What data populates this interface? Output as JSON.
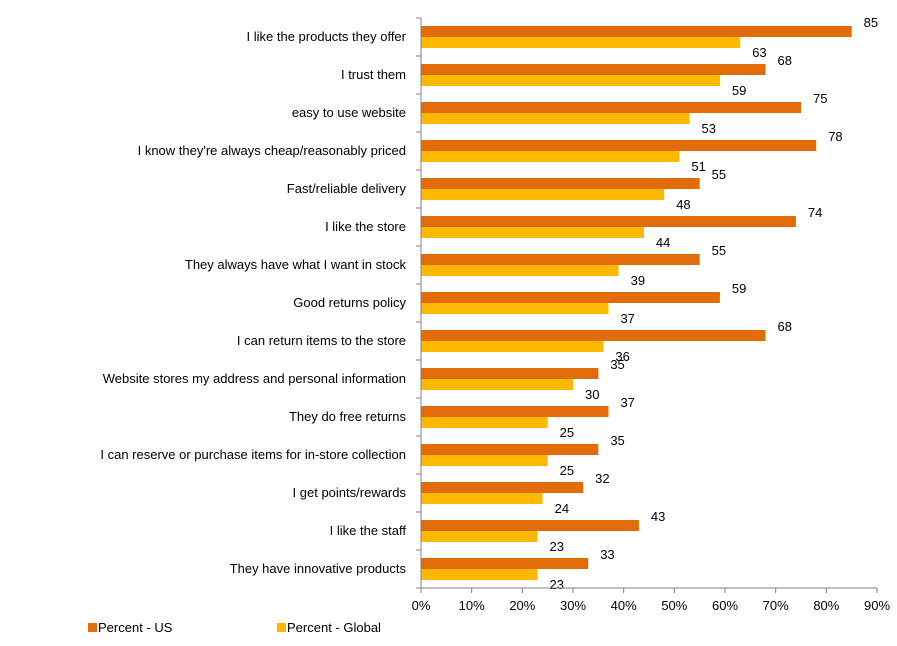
{
  "chart_data": {
    "type": "bar",
    "orientation": "horizontal",
    "categories": [
      "I like the products they offer",
      "I trust them",
      "easy to use website",
      "I know they're always cheap/reasonably priced",
      "Fast/reliable delivery",
      "I like the store",
      "They always have what I want in stock",
      "Good returns policy",
      "I can return items to the store",
      "Website stores my address and personal information",
      "They do free returns",
      "I can reserve or purchase items for in-store collection",
      "I get points/rewards",
      "I like the staff",
      "They have innovative products"
    ],
    "series": [
      {
        "name": "Percent - US",
        "color": "#E36C0A",
        "values": [
          85,
          68,
          75,
          78,
          55,
          74,
          55,
          59,
          68,
          35,
          37,
          35,
          32,
          43,
          33
        ]
      },
      {
        "name": "Percent - Global",
        "color": "#FFB800",
        "values": [
          63,
          59,
          53,
          51,
          48,
          44,
          39,
          37,
          36,
          30,
          25,
          25,
          24,
          23,
          23
        ]
      }
    ],
    "xlim": [
      0,
      90
    ],
    "xticks": [
      0,
      10,
      20,
      30,
      40,
      50,
      60,
      70,
      80,
      90
    ],
    "xtick_labels": [
      "0%",
      "10%",
      "20%",
      "30%",
      "40%",
      "50%",
      "60%",
      "70%",
      "80%",
      "90%"
    ],
    "grid": false,
    "legend_position": "bottom-left",
    "title": "",
    "xlabel": "",
    "ylabel": ""
  }
}
